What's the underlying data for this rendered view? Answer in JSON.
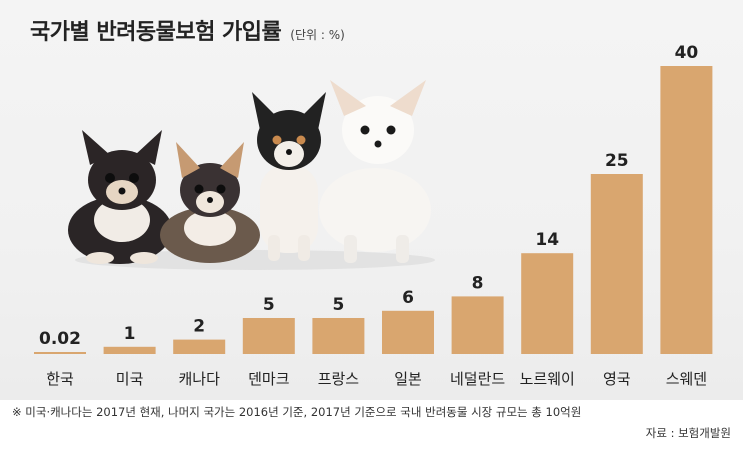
{
  "header": {
    "title": "국가별 반려동물보험 가입률",
    "unit": "(단위 : %)"
  },
  "footer": {
    "note": "※ 미국·캐나다는 2017년 현재, 나머지 국가는 2016년 기준, 2017년 기준으로 국내 반려동물 시장 규모는 총 10억원",
    "source": "자료 : 보험개발원"
  },
  "colors": {
    "bar": "#d9a66f",
    "panel": "#f2f2f2",
    "text": "#222222"
  },
  "chart_data": {
    "type": "bar",
    "title": "국가별 반려동물보험 가입률",
    "xlabel": "",
    "ylabel": "",
    "ylim": [
      0,
      40
    ],
    "grid": false,
    "categories": [
      "한국",
      "미국",
      "캐나다",
      "덴마크",
      "프랑스",
      "일본",
      "네덜란드",
      "노르웨이",
      "영국",
      "스웨덴"
    ],
    "values": [
      0.02,
      1,
      2,
      5,
      5,
      6,
      8,
      14,
      25,
      40
    ],
    "value_labels": [
      "0.02",
      "1",
      "2",
      "5",
      "5",
      "6",
      "8",
      "14",
      "25",
      "40"
    ]
  }
}
